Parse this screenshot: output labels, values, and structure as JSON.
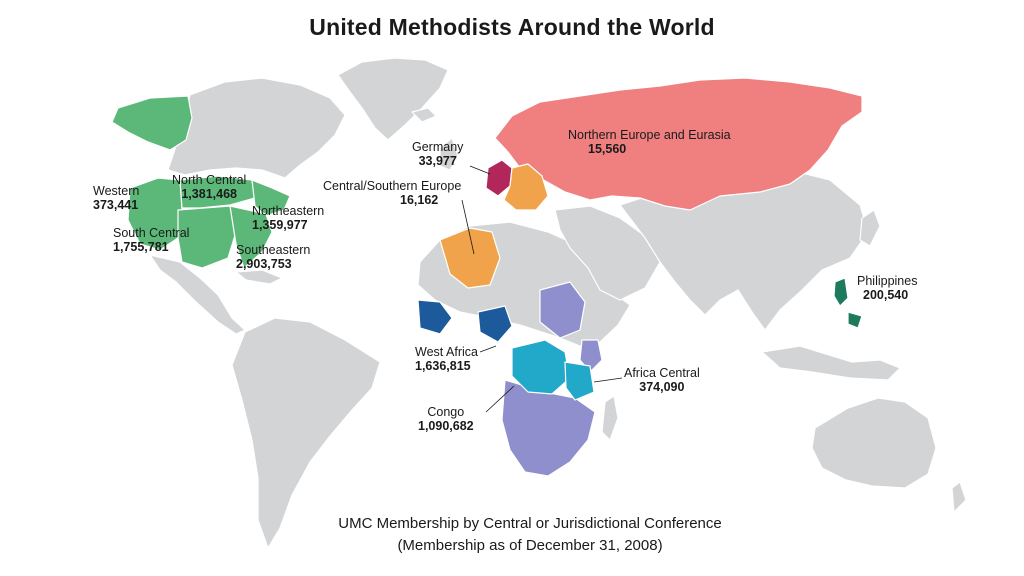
{
  "title": "United Methodists Around the World",
  "caption": {
    "line1": "UMC Membership by Central or Jurisdictional Conference",
    "line2": "(Membership as of December 31, 2008)"
  },
  "colors": {
    "land": "#d2d4d6",
    "border": "#ffffff",
    "us_jurisdictions": "#5cb878",
    "germany": "#b2275a",
    "central_southern_europe": "#f0a34a",
    "northern_europe_eurasia": "#f08080",
    "west_africa": "#1d5a9c",
    "africa_central": "#22a8c8",
    "congo": "#8e8fcc",
    "philippines": "#1e7a5c"
  },
  "regions": [
    {
      "id": "western",
      "name": "Western",
      "value": "373,441"
    },
    {
      "id": "north-central",
      "name": "North Central",
      "value": "1,381,468"
    },
    {
      "id": "northeastern",
      "name": "Northeastern",
      "value": "1,359,977"
    },
    {
      "id": "south-central",
      "name": "South Central",
      "value": "1,755,781"
    },
    {
      "id": "southeastern",
      "name": "Southeastern",
      "value": "2,903,753"
    },
    {
      "id": "germany",
      "name": "Germany",
      "value": "33,977"
    },
    {
      "id": "central-southern-europe",
      "name": "Central/Southern Europe",
      "value": "16,162"
    },
    {
      "id": "northern-europe-eurasia",
      "name": "Northern Europe and Eurasia",
      "value": "15,560"
    },
    {
      "id": "philippines",
      "name": "Philippines",
      "value": "200,540"
    },
    {
      "id": "west-africa",
      "name": "West Africa",
      "value": "1,636,815"
    },
    {
      "id": "africa-central",
      "name": "Africa Central",
      "value": "374,090"
    },
    {
      "id": "congo",
      "name": "Congo",
      "value": "1,090,682"
    }
  ]
}
